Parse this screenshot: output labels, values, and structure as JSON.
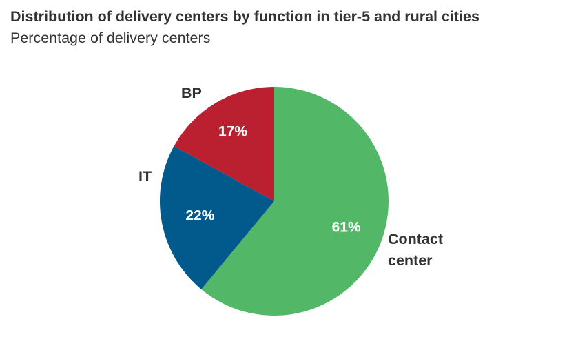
{
  "chart_data": {
    "type": "pie",
    "title": "Distribution of delivery centers by function in tier-5 and rural cities",
    "subtitle": "Percentage of delivery centers",
    "slices": [
      {
        "name": "Contact center",
        "value": 61,
        "label": "61%",
        "color": "#52b767"
      },
      {
        "name": "IT",
        "value": 22,
        "label": "22%",
        "color": "#02598b"
      },
      {
        "name": "BP",
        "value": 17,
        "label": "17%",
        "color": "#bb2030"
      }
    ]
  }
}
